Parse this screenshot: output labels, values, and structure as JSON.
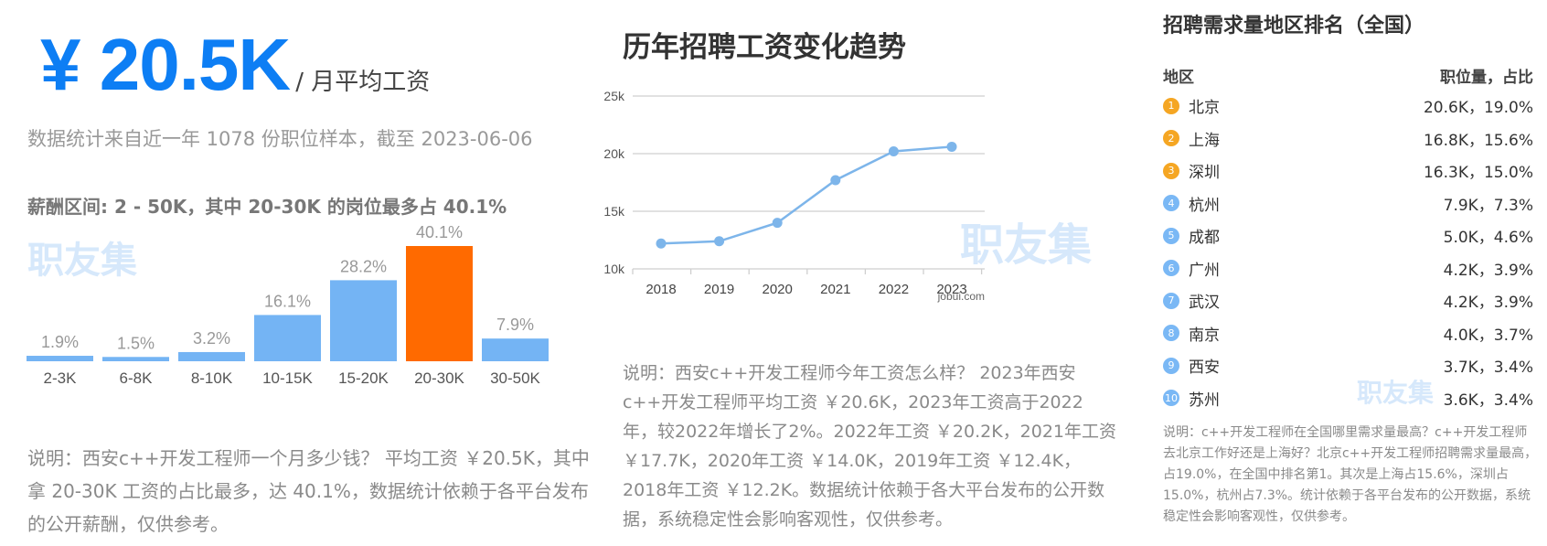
{
  "salary": {
    "amount": "¥ 20.5K",
    "unit": "/ 月平均工资",
    "sample_note": "数据统计来自近一年 1078 份职位样本，截至 2023-06-06",
    "range_line": "薪酬区间: 2 - 50K，其中 20-30K 的岗位最多占 40.1%",
    "description": "说明：西安c++开发工程师一个月多少钱？ 平均工资 ￥20.5K，其中拿 20-30K 工资的占比最多，达 40.1%，数据统计依赖于各平台发布的公开薪酬，仅供参考。"
  },
  "watermark": "职友集",
  "trend": {
    "title": "历年招聘工资变化趋势",
    "source": "jobui.com",
    "description": "说明：西安c++开发工程师今年工资怎么样？ 2023年西安c++开发工程师平均工资 ￥20.6K，2023年工资高于2022年，较2022年增长了2%。2022年工资 ￥20.2K，2021年工资 ￥17.7K，2020年工资 ￥14.0K，2019年工资 ￥12.4K，2018年工资 ￥12.2K。数据统计依赖于各大平台发布的公开数据，系统稳定性会影响客观性，仅供参考。"
  },
  "ranking": {
    "title": "招聘需求量地区排名（全国）",
    "col_region": "地区",
    "col_value": "职位量，占比",
    "items": [
      {
        "rank": "1",
        "city": "北京",
        "value": "20.6K，19.0%"
      },
      {
        "rank": "2",
        "city": "上海",
        "value": "16.8K，15.6%"
      },
      {
        "rank": "3",
        "city": "深圳",
        "value": "16.3K，15.0%"
      },
      {
        "rank": "4",
        "city": "杭州",
        "value": "7.9K，7.3%"
      },
      {
        "rank": "5",
        "city": "成都",
        "value": "5.0K，4.6%"
      },
      {
        "rank": "6",
        "city": "广州",
        "value": "4.2K，3.9%"
      },
      {
        "rank": "7",
        "city": "武汉",
        "value": "4.2K，3.9%"
      },
      {
        "rank": "8",
        "city": "南京",
        "value": "4.0K，3.7%"
      },
      {
        "rank": "9",
        "city": "西安",
        "value": "3.7K，3.4%"
      },
      {
        "rank": "10",
        "city": "苏州",
        "value": "3.6K，3.4%"
      }
    ],
    "description": "说明：c++开发工程师在全国哪里需求量最高？c++开发工程师去北京工作好还是上海好？北京c++开发工程师招聘需求量最高，占19.0%，在全国中排名第1。其次是上海占15.6%，深圳占15.0%，杭州占7.3%。统计依赖于各平台发布的公开数据，系统稳定性会影响客观性，仅供参考。"
  },
  "colors": {
    "accent": "#0d7ef4",
    "bar": "#74b4f4",
    "bar_highlight": "#ff6a00",
    "line": "#7db5ea",
    "rank_top": "#f5a623",
    "rank_rest": "#7ab8f5"
  },
  "chart_data": [
    {
      "type": "bar",
      "categories": [
        "2-3K",
        "6-8K",
        "8-10K",
        "10-15K",
        "15-20K",
        "20-30K",
        "30-50K"
      ],
      "values": [
        1.9,
        1.5,
        3.2,
        16.1,
        28.2,
        40.1,
        7.9
      ],
      "labels": [
        "1.9%",
        "1.5%",
        "3.2%",
        "16.1%",
        "28.2%",
        "40.1%",
        "7.9%"
      ],
      "highlight": "20-30K",
      "ylim": [
        0,
        40.1
      ]
    },
    {
      "type": "line",
      "x": [
        "2018",
        "2019",
        "2020",
        "2021",
        "2022",
        "2023"
      ],
      "values": [
        12.2,
        12.4,
        14.0,
        17.7,
        20.2,
        20.6
      ],
      "yticks": [
        "10k",
        "15k",
        "20k",
        "25k"
      ],
      "ylim": [
        10,
        25
      ],
      "grid": true
    }
  ]
}
